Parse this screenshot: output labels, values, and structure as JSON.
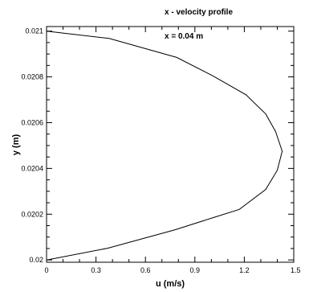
{
  "chart_data": {
    "type": "line",
    "title": "x - velocity profile",
    "subtitle": "x = 0.04 m",
    "xlabel": "u (m/s)",
    "ylabel": "y (m)",
    "xlim": [
      0,
      1.5
    ],
    "ylim": [
      0.01999,
      0.02102
    ],
    "x_ticks": [
      "0",
      "0.3",
      "0.6",
      "0.9",
      "1.2",
      "1.5"
    ],
    "y_ticks": [
      "0.02",
      "0.0202",
      "0.0204",
      "0.0206",
      "0.0208",
      "0.021"
    ],
    "grid": false,
    "series": [
      {
        "color": "#000000",
        "points": [
          {
            "x": 0.0,
            "y": 0.02
          },
          {
            "x": 0.37,
            "y": 0.020051
          },
          {
            "x": 0.78,
            "y": 0.020132
          },
          {
            "x": 1.02,
            "y": 0.020187
          },
          {
            "x": 1.17,
            "y": 0.020221
          },
          {
            "x": 1.33,
            "y": 0.020308
          },
          {
            "x": 1.4,
            "y": 0.020392
          },
          {
            "x": 1.43,
            "y": 0.020475
          },
          {
            "x": 1.39,
            "y": 0.020561
          },
          {
            "x": 1.33,
            "y": 0.020638
          },
          {
            "x": 1.21,
            "y": 0.020722
          },
          {
            "x": 1.01,
            "y": 0.020804
          },
          {
            "x": 0.79,
            "y": 0.020885
          },
          {
            "x": 0.38,
            "y": 0.020968
          },
          {
            "x": 0.0,
            "y": 0.021
          }
        ]
      }
    ]
  }
}
